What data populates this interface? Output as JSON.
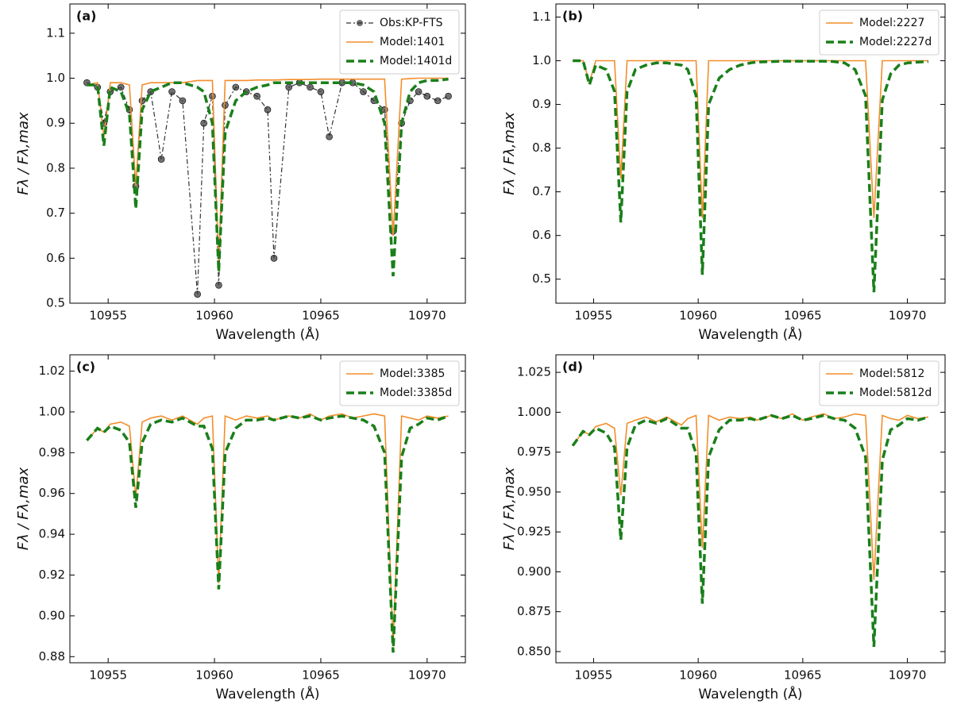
{
  "chart_data": [
    {
      "type": "line",
      "panel_label": "(a)",
      "xlabel": "Wavelength (Å)",
      "ylabel": "Fλ / Fλ,max",
      "x": [
        10954.0,
        10954.5,
        10954.8,
        10955.1,
        10955.6,
        10956.0,
        10956.3,
        10956.6,
        10957.0,
        10957.5,
        10958.0,
        10958.5,
        10959.2,
        10959.5,
        10959.9,
        10960.2,
        10960.5,
        10961.0,
        10961.5,
        10962.0,
        10962.5,
        10962.8,
        10963.5,
        10964.0,
        10964.5,
        10965.0,
        10965.4,
        10966.0,
        10966.5,
        10967.0,
        10967.5,
        10968.0,
        10968.4,
        10968.8,
        10969.2,
        10969.6,
        10970.0,
        10970.5,
        10971.0
      ],
      "series": [
        {
          "name": "Obs:KP-FTS",
          "color": "#333333",
          "style": "dashdot",
          "marker": "o",
          "values": [
            0.99,
            0.98,
            0.9,
            0.97,
            0.98,
            0.93,
            0.76,
            0.95,
            0.97,
            0.82,
            0.97,
            0.95,
            0.52,
            0.9,
            0.96,
            0.54,
            0.94,
            0.98,
            0.97,
            0.96,
            0.93,
            0.6,
            0.98,
            0.99,
            0.98,
            0.97,
            0.87,
            0.99,
            0.99,
            0.97,
            0.95,
            0.93,
            0.66,
            0.9,
            0.95,
            0.97,
            0.96,
            0.95,
            0.96
          ]
        },
        {
          "name": "Model:1401",
          "color": "#f28e2b",
          "style": "solid",
          "values": [
            0.985,
            0.99,
            0.87,
            0.99,
            0.99,
            0.985,
            0.76,
            0.985,
            0.99,
            0.99,
            0.99,
            0.99,
            0.995,
            0.995,
            0.995,
            0.59,
            0.995,
            0.995,
            0.995,
            0.996,
            0.996,
            0.996,
            0.997,
            0.997,
            0.997,
            0.998,
            0.998,
            0.998,
            0.998,
            0.998,
            0.998,
            0.998,
            0.65,
            0.998,
            0.999,
            1.0,
            1.0,
            1.0,
            1.0
          ]
        },
        {
          "name": "Model:1401d",
          "color": "#1a7f1a",
          "style": "dashed",
          "values": [
            0.985,
            0.985,
            0.85,
            0.98,
            0.97,
            0.92,
            0.71,
            0.93,
            0.97,
            0.98,
            0.99,
            0.99,
            0.98,
            0.97,
            0.9,
            0.57,
            0.88,
            0.95,
            0.97,
            0.98,
            0.985,
            0.99,
            0.99,
            0.99,
            0.99,
            0.99,
            0.99,
            0.99,
            0.99,
            0.985,
            0.97,
            0.9,
            0.56,
            0.9,
            0.97,
            0.99,
            0.995,
            0.995,
            0.998
          ]
        }
      ],
      "xlim": [
        10953.2,
        10971.8
      ],
      "xticks": [
        10955,
        10960,
        10965,
        10970
      ],
      "ylim": [
        0.5,
        1.165
      ],
      "yticks": [
        {
          "value": 0.5,
          "label": "0.5"
        },
        {
          "value": 0.6,
          "label": "0.6"
        },
        {
          "value": 0.7,
          "label": "0.7"
        },
        {
          "value": 0.8,
          "label": "0.8"
        },
        {
          "value": 0.9,
          "label": "0.9"
        },
        {
          "value": 1.0,
          "label": "1.0"
        },
        1.1
      ],
      "legend": "upper right"
    },
    {
      "type": "line",
      "panel_label": "(b)",
      "xlabel": "Wavelength (Å)",
      "ylabel": "Fλ / Fλ,max",
      "x": [
        10954.0,
        10954.5,
        10954.8,
        10955.1,
        10955.6,
        10956.0,
        10956.3,
        10956.6,
        10957.0,
        10957.5,
        10958.0,
        10958.5,
        10959.2,
        10959.5,
        10959.9,
        10960.2,
        10960.5,
        10961.0,
        10961.5,
        10962.0,
        10962.5,
        10962.8,
        10963.5,
        10964.0,
        10964.5,
        10965.0,
        10965.4,
        10966.0,
        10966.5,
        10967.0,
        10967.5,
        10968.0,
        10968.4,
        10968.8,
        10969.2,
        10969.6,
        10970.0,
        10970.5,
        10971.0
      ],
      "series": [
        {
          "name": "Model:2227",
          "color": "#f28e2b",
          "style": "solid",
          "values": [
            1.0,
            1.0,
            0.95,
            1.0,
            1.0,
            1.0,
            0.73,
            1.0,
            1.0,
            1.0,
            1.0,
            1.0,
            1.0,
            1.0,
            1.0,
            0.64,
            1.0,
            1.0,
            1.0,
            1.0,
            1.0,
            1.0,
            1.0,
            1.0,
            1.0,
            1.0,
            1.0,
            1.0,
            1.0,
            1.0,
            1.0,
            1.0,
            0.64,
            1.0,
            1.0,
            1.0,
            1.0,
            1.0,
            1.0
          ]
        },
        {
          "name": "Model:2227d",
          "color": "#1a7f1a",
          "style": "dashed",
          "values": [
            1.0,
            1.0,
            0.945,
            0.99,
            0.98,
            0.93,
            0.63,
            0.93,
            0.98,
            0.99,
            0.995,
            0.995,
            0.99,
            0.98,
            0.92,
            0.51,
            0.9,
            0.96,
            0.98,
            0.99,
            0.995,
            0.997,
            0.998,
            0.999,
            0.999,
            0.999,
            0.999,
            0.999,
            0.998,
            0.995,
            0.98,
            0.92,
            0.47,
            0.91,
            0.97,
            0.99,
            0.995,
            0.997,
            0.998
          ]
        }
      ],
      "xlim": [
        10953.2,
        10971.8
      ],
      "xticks": [
        10955,
        10960,
        10965,
        10970
      ],
      "ylim": [
        0.445,
        1.13
      ],
      "yticks": [
        {
          "value": 0.5,
          "label": "0.5"
        },
        {
          "value": 0.6,
          "label": "0.6"
        },
        {
          "value": 0.7,
          "label": "0.7"
        },
        {
          "value": 0.8,
          "label": "0.8"
        },
        {
          "value": 0.9,
          "label": "0.9"
        },
        {
          "value": 1.0,
          "label": "1.0"
        },
        1.1
      ],
      "legend": "upper right"
    },
    {
      "type": "line",
      "panel_label": "(c)",
      "xlabel": "Wavelength (Å)",
      "ylabel": "Fλ / Fλ,max",
      "x": [
        10954.0,
        10954.5,
        10954.8,
        10955.1,
        10955.6,
        10956.0,
        10956.3,
        10956.6,
        10957.0,
        10957.5,
        10958.0,
        10958.5,
        10959.2,
        10959.5,
        10959.9,
        10960.2,
        10960.5,
        10961.0,
        10961.5,
        10962.0,
        10962.5,
        10962.8,
        10963.5,
        10964.0,
        10964.5,
        10965.0,
        10965.4,
        10966.0,
        10966.5,
        10967.0,
        10967.5,
        10968.0,
        10968.4,
        10968.8,
        10969.2,
        10969.6,
        10970.0,
        10970.5,
        10971.0
      ],
      "series": [
        {
          "name": "Model:3385",
          "color": "#f28e2b",
          "style": "solid",
          "values": [
            0.986,
            0.992,
            0.99,
            0.994,
            0.995,
            0.993,
            0.958,
            0.995,
            0.997,
            0.998,
            0.996,
            0.998,
            0.994,
            0.997,
            0.998,
            0.916,
            0.998,
            0.996,
            0.998,
            0.997,
            0.998,
            0.996,
            0.998,
            0.997,
            0.999,
            0.996,
            0.998,
            0.999,
            0.997,
            0.998,
            0.999,
            0.998,
            0.885,
            0.998,
            0.997,
            0.996,
            0.998,
            0.997,
            0.998
          ]
        },
        {
          "name": "Model:3385d",
          "color": "#1a7f1a",
          "style": "dashed",
          "values": [
            0.986,
            0.992,
            0.99,
            0.993,
            0.991,
            0.985,
            0.953,
            0.985,
            0.994,
            0.996,
            0.995,
            0.997,
            0.993,
            0.993,
            0.982,
            0.913,
            0.98,
            0.992,
            0.996,
            0.996,
            0.997,
            0.996,
            0.998,
            0.997,
            0.998,
            0.996,
            0.997,
            0.998,
            0.997,
            0.996,
            0.993,
            0.98,
            0.882,
            0.978,
            0.992,
            0.994,
            0.997,
            0.996,
            0.998
          ]
        }
      ],
      "xlim": [
        10953.2,
        10971.8
      ],
      "xticks": [
        10955,
        10960,
        10965,
        10970
      ],
      "ylim": [
        0.877,
        1.028
      ],
      "yticks": [
        0.88,
        {
          "value": 0.9,
          "label": "0.90"
        },
        0.92,
        0.94,
        0.96,
        0.98,
        {
          "value": 1.0,
          "label": "1.00"
        },
        1.02
      ],
      "legend": "upper right"
    },
    {
      "type": "line",
      "panel_label": "(d)",
      "xlabel": "Wavelength (Å)",
      "ylabel": "Fλ / Fλ,max",
      "x": [
        10954.0,
        10954.5,
        10954.8,
        10955.1,
        10955.6,
        10956.0,
        10956.3,
        10956.6,
        10957.0,
        10957.5,
        10958.0,
        10958.5,
        10959.2,
        10959.5,
        10959.9,
        10960.2,
        10960.5,
        10961.0,
        10961.5,
        10962.0,
        10962.5,
        10962.8,
        10963.5,
        10964.0,
        10964.5,
        10965.0,
        10965.4,
        10966.0,
        10966.5,
        10967.0,
        10967.5,
        10968.0,
        10968.4,
        10968.8,
        10969.2,
        10969.6,
        10970.0,
        10970.5,
        10971.0
      ],
      "series": [
        {
          "name": "Model:5812",
          "color": "#f28e2b",
          "style": "solid",
          "values": [
            0.979,
            0.988,
            0.986,
            0.991,
            0.993,
            0.99,
            0.948,
            0.993,
            0.995,
            0.997,
            0.994,
            0.997,
            0.992,
            0.996,
            0.998,
            0.915,
            0.998,
            0.995,
            0.997,
            0.996,
            0.997,
            0.995,
            0.998,
            0.996,
            0.999,
            0.995,
            0.997,
            0.999,
            0.996,
            0.997,
            0.999,
            0.998,
            0.895,
            0.998,
            0.996,
            0.995,
            0.998,
            0.996,
            0.997
          ]
        },
        {
          "name": "Model:5812d",
          "color": "#1a7f1a",
          "style": "dashed",
          "values": [
            0.979,
            0.988,
            0.986,
            0.99,
            0.987,
            0.978,
            0.92,
            0.978,
            0.992,
            0.995,
            0.993,
            0.996,
            0.99,
            0.99,
            0.974,
            0.88,
            0.972,
            0.989,
            0.995,
            0.995,
            0.996,
            0.995,
            0.998,
            0.996,
            0.998,
            0.995,
            0.996,
            0.998,
            0.996,
            0.995,
            0.99,
            0.972,
            0.853,
            0.97,
            0.989,
            0.992,
            0.996,
            0.995,
            0.997
          ]
        }
      ],
      "xlim": [
        10953.2,
        10971.8
      ],
      "xticks": [
        10955,
        10960,
        10965,
        10970
      ],
      "ylim": [
        0.843,
        1.036
      ],
      "yticks": [
        {
          "value": 0.85,
          "label": "0.850"
        },
        0.875,
        {
          "value": 0.9,
          "label": "0.900"
        },
        0.925,
        {
          "value": 0.95,
          "label": "0.950"
        },
        0.975,
        {
          "value": 1.0,
          "label": "1.000"
        },
        1.025
      ],
      "legend": "upper right"
    }
  ]
}
